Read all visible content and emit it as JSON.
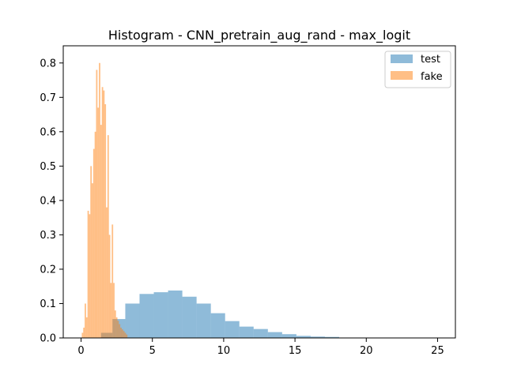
{
  "chart_data": {
    "type": "histogram",
    "title": "Histogram - CNN_pretrain_aug_rand - max_logit",
    "xlabel": "",
    "ylabel": "",
    "xlim": [
      -1.25,
      26.25
    ],
    "ylim": [
      0,
      0.85
    ],
    "xticks": [
      "0",
      "5",
      "10",
      "15",
      "20",
      "25"
    ],
    "yticks": [
      "0.0",
      "0.1",
      "0.2",
      "0.3",
      "0.4",
      "0.5",
      "0.6",
      "0.7",
      "0.8"
    ],
    "grid": false,
    "legend_position": "top-right",
    "series": [
      {
        "name": "test",
        "color": "#1f77b4",
        "alpha": 0.5,
        "bins": [
          {
            "x0": 0.4,
            "x1": 1.4,
            "value": 0.0
          },
          {
            "x0": 1.4,
            "x1": 2.2,
            "value": 0.015
          },
          {
            "x0": 2.2,
            "x1": 3.1,
            "value": 0.055
          },
          {
            "x0": 3.1,
            "x1": 4.1,
            "value": 0.1
          },
          {
            "x0": 4.1,
            "x1": 5.1,
            "value": 0.128
          },
          {
            "x0": 5.1,
            "x1": 6.1,
            "value": 0.133
          },
          {
            "x0": 6.1,
            "x1": 7.1,
            "value": 0.138
          },
          {
            "x0": 7.1,
            "x1": 8.1,
            "value": 0.12
          },
          {
            "x0": 8.1,
            "x1": 9.1,
            "value": 0.1
          },
          {
            "x0": 9.1,
            "x1": 10.1,
            "value": 0.072
          },
          {
            "x0": 10.1,
            "x1": 11.1,
            "value": 0.049
          },
          {
            "x0": 11.1,
            "x1": 12.1,
            "value": 0.033
          },
          {
            "x0": 12.1,
            "x1": 13.1,
            "value": 0.026
          },
          {
            "x0": 13.1,
            "x1": 14.1,
            "value": 0.017
          },
          {
            "x0": 14.1,
            "x1": 15.1,
            "value": 0.011
          },
          {
            "x0": 15.1,
            "x1": 16.1,
            "value": 0.006
          },
          {
            "x0": 16.1,
            "x1": 17.1,
            "value": 0.004
          },
          {
            "x0": 17.1,
            "x1": 18.1,
            "value": 0.003
          },
          {
            "x0": 18.1,
            "x1": 19.1,
            "value": 0.001
          },
          {
            "x0": 19.1,
            "x1": 20.1,
            "value": 0.001
          },
          {
            "x0": 20.1,
            "x1": 21.1,
            "value": 0.0005
          },
          {
            "x0": 21.1,
            "x1": 22.1,
            "value": 0.0003
          },
          {
            "x0": 22.1,
            "x1": 23.1,
            "value": 0.0002
          },
          {
            "x0": 23.1,
            "x1": 24.1,
            "value": 0.0001
          },
          {
            "x0": 24.1,
            "x1": 25.1,
            "value": 0.0001
          }
        ]
      },
      {
        "name": "fake",
        "color": "#ff7f0e",
        "alpha": 0.5,
        "bin_start": 0.05,
        "bin_width": 0.1,
        "values": [
          0.015,
          0.03,
          0.1,
          0.06,
          0.37,
          0.36,
          0.5,
          0.45,
          0.55,
          0.6,
          0.78,
          0.67,
          0.8,
          0.62,
          0.73,
          0.72,
          0.68,
          0.38,
          0.59,
          0.3,
          0.16,
          0.33,
          0.16,
          0.08,
          0.06,
          0.05,
          0.04,
          0.03,
          0.025,
          0.02,
          0.015,
          0.01
        ]
      }
    ]
  }
}
